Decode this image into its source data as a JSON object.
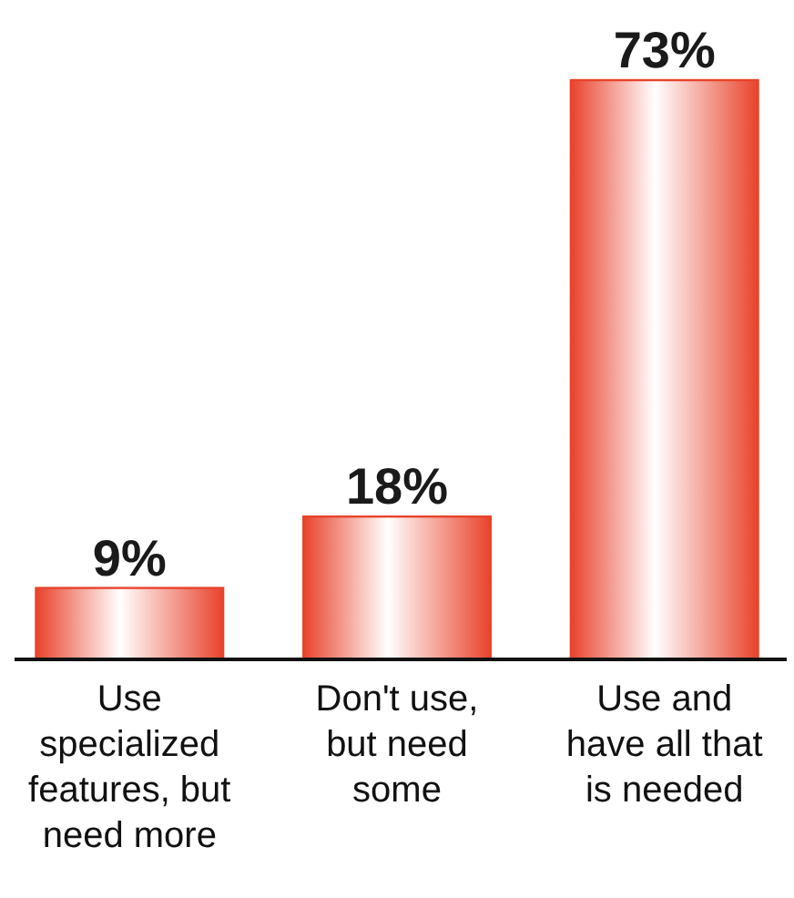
{
  "chart_data": {
    "type": "bar",
    "categories": [
      "Use specialized features, but need more",
      "Don't use, but need some",
      "Use and have all that is needed"
    ],
    "values": [
      9,
      18,
      73
    ],
    "color": "#e8432c",
    "value_labels": [
      "9%",
      "18%",
      "73%"
    ]
  }
}
